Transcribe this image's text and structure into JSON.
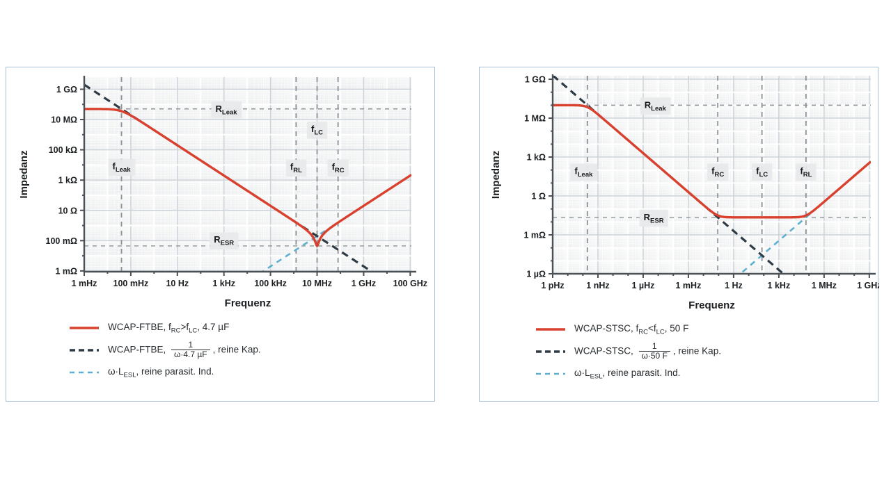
{
  "colors": {
    "curve_red": "#d9402e",
    "curve_dark": "#2e3b44",
    "curve_blue": "#5fb0cf",
    "guide": "#8b9196",
    "panel": "#f0f1f2",
    "grid_labeled": "#ccd4da",
    "grid_decade": "#ffffff",
    "axis": "#4a5156",
    "text": "#1b1f22",
    "annotation_bg": "#e8e9eb",
    "card_border": "#a9bed8"
  },
  "chart_data": [
    {
      "type": "line",
      "id": "film-capacitor",
      "xlabel": "Frequenz",
      "ylabel": "Impedanz",
      "x_axis": {
        "scale": "log",
        "unit": "Hz",
        "log_min": -3,
        "log_max": 11.05,
        "ticks": [
          {
            "log": -3,
            "label": "1 mHz"
          },
          {
            "log": -1,
            "label": "100 mHz"
          },
          {
            "log": 1,
            "label": "10 Hz"
          },
          {
            "log": 3,
            "label": "1 kHz"
          },
          {
            "log": 5,
            "label": "100 kHz"
          },
          {
            "log": 7,
            "label": "10 MHz"
          },
          {
            "log": 9,
            "label": "1 GHz"
          },
          {
            "log": 11,
            "label": "100 GHz"
          }
        ]
      },
      "y_axis": {
        "scale": "log",
        "unit": "Ω",
        "log_min": -3.05,
        "log_max": 9.8,
        "ticks": [
          {
            "log": 9,
            "label": "1 GΩ"
          },
          {
            "log": 7,
            "label": "10 MΩ"
          },
          {
            "log": 5,
            "label": "100 kΩ"
          },
          {
            "log": 3,
            "label": "1 kΩ"
          },
          {
            "log": 1,
            "label": "10 Ω"
          },
          {
            "log": -1,
            "label": "100 mΩ"
          },
          {
            "log": -3,
            "label": "1 mΩ"
          }
        ]
      },
      "model": {
        "capacitance_value": "4.7 µF",
        "r_leak_log": 7.7,
        "r_esr_log": -1.35,
        "cap_line_intercept_log": 6.3,
        "ind_line_intercept_log": -7.7,
        "f_leak_log": -1.4,
        "f_rl_log": 6.1,
        "f_lc_log": 7.0,
        "f_rc_log": 7.9
      },
      "series": [
        {
          "id": "impedance",
          "style": "solid-red",
          "legend_parts": [
            {
              "t": "WCAP-FTBE, f"
            },
            {
              "sub": "RC"
            },
            {
              "t": ">f"
            },
            {
              "sub": "LC"
            },
            {
              "t": ", 4.7 µF"
            }
          ]
        },
        {
          "id": "pure-capacitance",
          "style": "dashed-dark",
          "legend_parts": [
            {
              "t": "WCAP-FTBE, "
            },
            {
              "frac": {
                "num": "1",
                "den": "ω·4.7 µF"
              }
            },
            {
              "t": ", reine Kap."
            }
          ]
        },
        {
          "id": "pure-inductance",
          "style": "dashed-blue",
          "legend_parts": [
            {
              "t": "ω·L"
            },
            {
              "sub": "ESL"
            },
            {
              "t": ", reine parasit. Ind."
            }
          ]
        }
      ],
      "annotations": [
        {
          "id": "r-leak",
          "logf": 3.1,
          "logz": 7.7,
          "parts": [
            {
              "t": "R"
            },
            {
              "sub": "Leak"
            }
          ]
        },
        {
          "id": "f-leak",
          "logf": -1.4,
          "logz": 3.9,
          "parts": [
            {
              "t": "f"
            },
            {
              "sub": "Leak"
            }
          ]
        },
        {
          "id": "f-rl",
          "logf": 6.1,
          "logz": 3.85,
          "parts": [
            {
              "t": "f"
            },
            {
              "sub": "RL"
            }
          ]
        },
        {
          "id": "f-lc",
          "logf": 7.0,
          "logz": 6.35,
          "parts": [
            {
              "t": "f"
            },
            {
              "sub": "LC"
            }
          ]
        },
        {
          "id": "f-rc",
          "logf": 7.9,
          "logz": 3.85,
          "parts": [
            {
              "t": "f"
            },
            {
              "sub": "RC"
            }
          ]
        },
        {
          "id": "r-esr",
          "logf": 3.0,
          "logz": -0.95,
          "parts": [
            {
              "t": "R"
            },
            {
              "sub": "ESR"
            }
          ]
        }
      ]
    },
    {
      "type": "line",
      "id": "supercapacitor",
      "xlabel": "Frequenz",
      "ylabel": "Impedanz",
      "x_axis": {
        "scale": "log",
        "unit": "Hz",
        "log_min": -12,
        "log_max": 9.1,
        "ticks": [
          {
            "log": -12,
            "label": "1 pHz"
          },
          {
            "log": -9,
            "label": "1 nHz"
          },
          {
            "log": -6,
            "label": "1 µHz"
          },
          {
            "log": -3,
            "label": "1 mHz"
          },
          {
            "log": 0,
            "label": "1 Hz"
          },
          {
            "log": 3,
            "label": "1 kHz"
          },
          {
            "log": 6,
            "label": "1 MHz"
          },
          {
            "log": 9,
            "label": "1 GHz"
          }
        ]
      },
      "y_axis": {
        "scale": "log",
        "unit": "Ω",
        "log_min": -6,
        "log_max": 9.27,
        "ticks": [
          {
            "log": 9,
            "label": "1 GΩ"
          },
          {
            "log": 6,
            "label": "1 MΩ"
          },
          {
            "log": 3,
            "label": "1 kΩ"
          },
          {
            "log": 0,
            "label": "1 Ω"
          },
          {
            "log": -3,
            "label": "1 mΩ"
          },
          {
            "log": -6,
            "label": "1 µΩ"
          }
        ]
      },
      "model": {
        "capacitance_value": "50 F",
        "r_leak_log": 7.0,
        "r_esr_log": -1.65,
        "cap_line_intercept_log": -2.7,
        "ind_line_intercept_log": -6.45,
        "f_leak_log": -9.7,
        "f_rc_log": -1.05,
        "f_lc_log": 1.88,
        "f_rl_log": 4.8
      },
      "series": [
        {
          "id": "impedance",
          "style": "solid-red",
          "legend_parts": [
            {
              "t": "WCAP-STSC, f"
            },
            {
              "sub": "RC"
            },
            {
              "t": "<f"
            },
            {
              "sub": "LC"
            },
            {
              "t": ", 50 F"
            }
          ]
        },
        {
          "id": "pure-capacitance",
          "style": "dashed-dark",
          "legend_parts": [
            {
              "t": "WCAP-STSC, "
            },
            {
              "frac": {
                "num": "1",
                "den": "ω·50 F"
              }
            },
            {
              "t": ", reine Kap."
            }
          ]
        },
        {
          "id": "pure-inductance",
          "style": "dashed-blue",
          "legend_parts": [
            {
              "t": "ω·L"
            },
            {
              "sub": "ESL"
            },
            {
              "t": ", reine parasit. Ind."
            }
          ]
        }
      ],
      "annotations": [
        {
          "id": "r-leak",
          "logf": -5.2,
          "logz": 7.0,
          "parts": [
            {
              "t": "R"
            },
            {
              "sub": "Leak"
            }
          ]
        },
        {
          "id": "f-leak",
          "logf": -9.95,
          "logz": 1.9,
          "parts": [
            {
              "t": "f"
            },
            {
              "sub": "Leak"
            }
          ]
        },
        {
          "id": "f-rc",
          "logf": -1.05,
          "logz": 1.9,
          "parts": [
            {
              "t": "f"
            },
            {
              "sub": "RC"
            }
          ]
        },
        {
          "id": "f-lc",
          "logf": 1.88,
          "logz": 1.9,
          "parts": [
            {
              "t": "f"
            },
            {
              "sub": "LC"
            }
          ]
        },
        {
          "id": "f-rl",
          "logf": 4.8,
          "logz": 1.9,
          "parts": [
            {
              "t": "f"
            },
            {
              "sub": "RL"
            }
          ]
        },
        {
          "id": "r-esr",
          "logf": -5.3,
          "logz": -1.65,
          "parts": [
            {
              "t": "R"
            },
            {
              "sub": "ESR"
            }
          ]
        }
      ]
    }
  ]
}
